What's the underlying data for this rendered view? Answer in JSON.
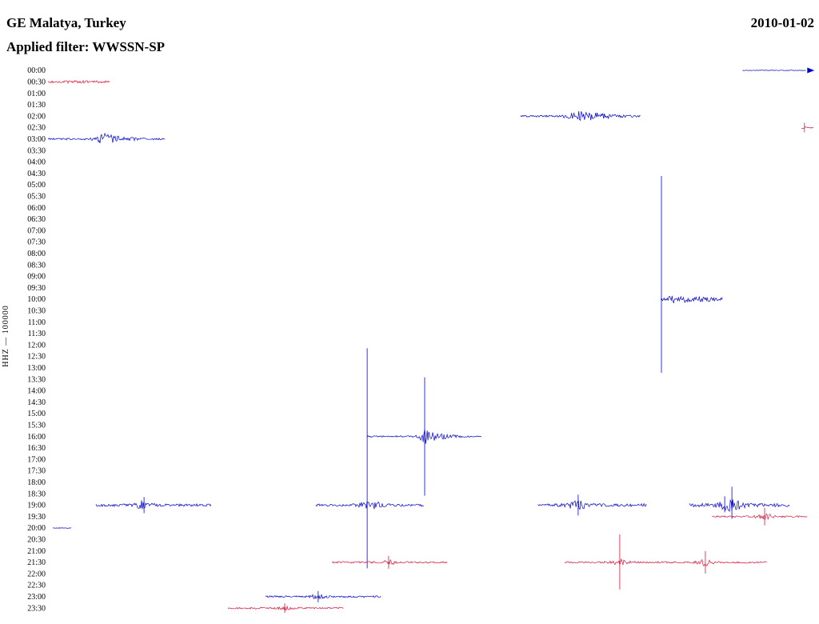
{
  "header": {
    "station": "GE Malatya, Turkey",
    "date": "2010-01-02",
    "filter": "Applied filter: WWSSN-SP"
  },
  "axis": {
    "ylabel": "HHZ — 100000"
  },
  "chart_data": {
    "type": "line",
    "title": "GE Malatya, Turkey 2010-01-02 helicorder, WWSSN-SP filtered, channel HHZ, scale 100000",
    "x_minutes_per_line": 30,
    "legend": "none",
    "grid": false,
    "colors": {
      "blue": "#0000cd",
      "red": "#dc143c"
    },
    "row_labels": [
      "00:00",
      "00:30",
      "01:00",
      "01:30",
      "02:00",
      "02:30",
      "03:00",
      "03:30",
      "04:00",
      "04:30",
      "05:00",
      "05:30",
      "06:00",
      "06:30",
      "07:00",
      "07:30",
      "08:00",
      "08:30",
      "09:00",
      "09:30",
      "10:00",
      "10:30",
      "11:00",
      "11:30",
      "12:00",
      "12:30",
      "13:00",
      "13:30",
      "14:00",
      "14:30",
      "15:00",
      "15:30",
      "16:00",
      "16:30",
      "17:00",
      "17:30",
      "18:00",
      "18:30",
      "19:00",
      "19:30",
      "20:00",
      "20:30",
      "21:00",
      "21:30",
      "22:00",
      "22:30",
      "23:00",
      "23:30"
    ],
    "traces": [
      {
        "row": "00:00",
        "color": "blue",
        "start_min": 27.2,
        "end_min": 29.7,
        "amp": 0.4,
        "bursts": [],
        "spikes": [],
        "arrow": true
      },
      {
        "row": "00:30",
        "color": "red",
        "start_min": 0.0,
        "end_min": 2.44,
        "amp": 1.1,
        "bursts": [
          {
            "t": 1.2,
            "a": 0.8,
            "s": 0.7
          }
        ],
        "spikes": []
      },
      {
        "row": "02:00",
        "color": "blue",
        "start_min": 18.5,
        "end_min": 23.2,
        "amp": 1.1,
        "bursts": [
          {
            "t": 20.9,
            "a": 4.5,
            "s": 0.35
          },
          {
            "t": 21.6,
            "a": 2.5,
            "s": 0.6
          }
        ],
        "spikes": []
      },
      {
        "row": "02:30",
        "color": "red",
        "start_min": 29.5,
        "end_min": 30.0,
        "amp": 1.0,
        "bursts": [],
        "spikes": [
          {
            "t": 29.62,
            "up": 6,
            "down": 6
          }
        ]
      },
      {
        "row": "03:00",
        "color": "blue",
        "start_min": 0.0,
        "end_min": 4.6,
        "amp": 1.1,
        "bursts": [
          {
            "t": 2.25,
            "a": 5,
            "s": 0.25
          },
          {
            "t": 2.8,
            "a": 2,
            "s": 0.5
          }
        ],
        "spikes": []
      },
      {
        "row": "10:00",
        "color": "blue",
        "start_min": 24.0,
        "end_min": 26.43,
        "amp": 2.2,
        "bursts": [
          {
            "t": 24.5,
            "a": 2.5,
            "s": 0.15
          },
          {
            "t": 25.0,
            "a": 2.5,
            "s": 0.15
          },
          {
            "t": 25.6,
            "a": 2.5,
            "s": 0.2
          }
        ],
        "spikes": [
          {
            "t": 24.02,
            "up": 154,
            "down": 92
          }
        ]
      },
      {
        "row": "16:00",
        "color": "blue",
        "start_min": 12.5,
        "end_min": 17.0,
        "amp": 0.9,
        "bursts": [
          {
            "t": 14.85,
            "a": 8,
            "s": 0.18
          },
          {
            "t": 15.3,
            "a": 2.5,
            "s": 0.45
          }
        ],
        "spikes": [
          {
            "t": 14.75,
            "up": 74,
            "down": 74
          }
        ]
      },
      {
        "row": "19:00",
        "color": "blue",
        "start_min": 1.88,
        "end_min": 6.42,
        "amp": 1.6,
        "bursts": [
          {
            "t": 3.76,
            "a": 5,
            "s": 0.2
          }
        ],
        "spikes": [
          {
            "t": 3.76,
            "up": 10,
            "down": 10
          }
        ]
      },
      {
        "row": "19:00",
        "color": "blue",
        "start_min": 10.49,
        "end_min": 14.72,
        "amp": 1.6,
        "bursts": [
          {
            "t": 12.62,
            "a": 4,
            "s": 0.3
          }
        ],
        "spikes": [
          {
            "t": 12.5,
            "up": 196,
            "down": 79
          }
        ]
      },
      {
        "row": "19:00",
        "color": "blue",
        "start_min": 19.17,
        "end_min": 23.43,
        "amp": 1.8,
        "bursts": [
          {
            "t": 20.76,
            "a": 5,
            "s": 0.25
          }
        ],
        "spikes": [
          {
            "t": 20.76,
            "up": 13,
            "down": 13
          }
        ]
      },
      {
        "row": "19:00",
        "color": "blue",
        "start_min": 25.12,
        "end_min": 29.06,
        "amp": 2.2,
        "bursts": [
          {
            "t": 26.75,
            "a": 6,
            "s": 0.3
          }
        ],
        "spikes": [
          {
            "t": 26.5,
            "up": 11,
            "down": 9
          },
          {
            "t": 26.78,
            "up": 23,
            "down": 17
          }
        ]
      },
      {
        "row": "19:30",
        "color": "red",
        "start_min": 26.0,
        "end_min": 29.75,
        "amp": 1.1,
        "bursts": [
          {
            "t": 28.06,
            "a": 4,
            "s": 0.2
          }
        ],
        "spikes": [
          {
            "t": 28.06,
            "up": 11,
            "down": 11
          }
        ]
      },
      {
        "row": "20:00",
        "color": "blue",
        "start_min": 0.19,
        "end_min": 0.94,
        "amp": 0.4,
        "bursts": [],
        "spikes": []
      },
      {
        "row": "21:30",
        "color": "red",
        "start_min": 11.12,
        "end_min": 15.63,
        "amp": 1.1,
        "bursts": [
          {
            "t": 13.34,
            "a": 3,
            "s": 0.15
          }
        ],
        "spikes": [
          {
            "t": 13.34,
            "up": 8,
            "down": 8
          }
        ]
      },
      {
        "row": "21:30",
        "color": "red",
        "start_min": 20.23,
        "end_min": 28.16,
        "amp": 1.1,
        "bursts": [
          {
            "t": 22.39,
            "a": 3,
            "s": 0.25
          },
          {
            "t": 25.74,
            "a": 4,
            "s": 0.2
          }
        ],
        "spikes": [
          {
            "t": 22.39,
            "up": 35,
            "down": 34
          },
          {
            "t": 25.74,
            "up": 14,
            "down": 14
          }
        ]
      },
      {
        "row": "23:00",
        "color": "blue",
        "start_min": 8.52,
        "end_min": 13.03,
        "amp": 1.1,
        "bursts": [
          {
            "t": 10.58,
            "a": 2.5,
            "s": 0.2
          }
        ],
        "spikes": [
          {
            "t": 10.58,
            "up": 7,
            "down": 7
          }
        ]
      },
      {
        "row": "23:30",
        "color": "red",
        "start_min": 7.05,
        "end_min": 11.59,
        "amp": 1.1,
        "bursts": [
          {
            "t": 9.27,
            "a": 2,
            "s": 0.2
          }
        ],
        "spikes": [
          {
            "t": 9.27,
            "up": 6,
            "down": 6
          }
        ]
      }
    ]
  }
}
